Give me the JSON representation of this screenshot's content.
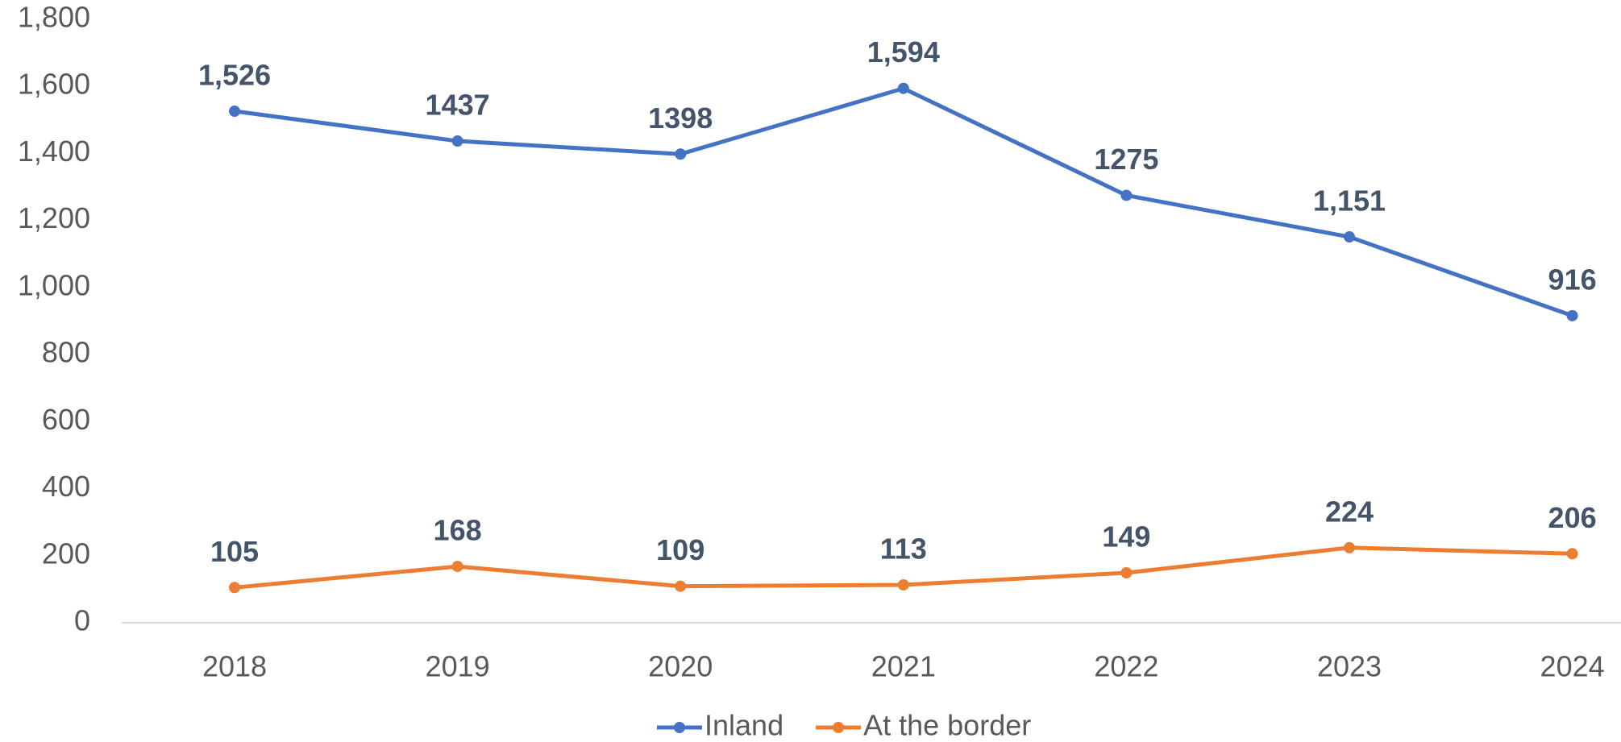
{
  "chart_data": {
    "type": "line",
    "categories": [
      "2018",
      "2019",
      "2020",
      "2021",
      "2022",
      "2023",
      "2024"
    ],
    "series": [
      {
        "name": "Inland",
        "color": "#4472c4",
        "values": [
          1526,
          1437,
          1398,
          1594,
          1275,
          1151,
          916
        ],
        "value_labels": [
          "1,526",
          "1437",
          "1398",
          "1,594",
          "1275",
          "1,151",
          "916"
        ]
      },
      {
        "name": "At the border",
        "color": "#ed7d31",
        "values": [
          105,
          168,
          109,
          113,
          149,
          224,
          206
        ]
      }
    ],
    "ylim": [
      0,
      1800
    ],
    "yticks": [
      0,
      200,
      400,
      600,
      800,
      {
        "value": 1000,
        "label": "1,000"
      },
      {
        "value": 1200,
        "label": "1,200"
      },
      {
        "value": 1400,
        "label": "1,400"
      },
      {
        "value": 1600,
        "label": "1,600"
      },
      {
        "value": 1800,
        "label": "1,800"
      }
    ],
    "grid": false,
    "legend": "bottom"
  }
}
